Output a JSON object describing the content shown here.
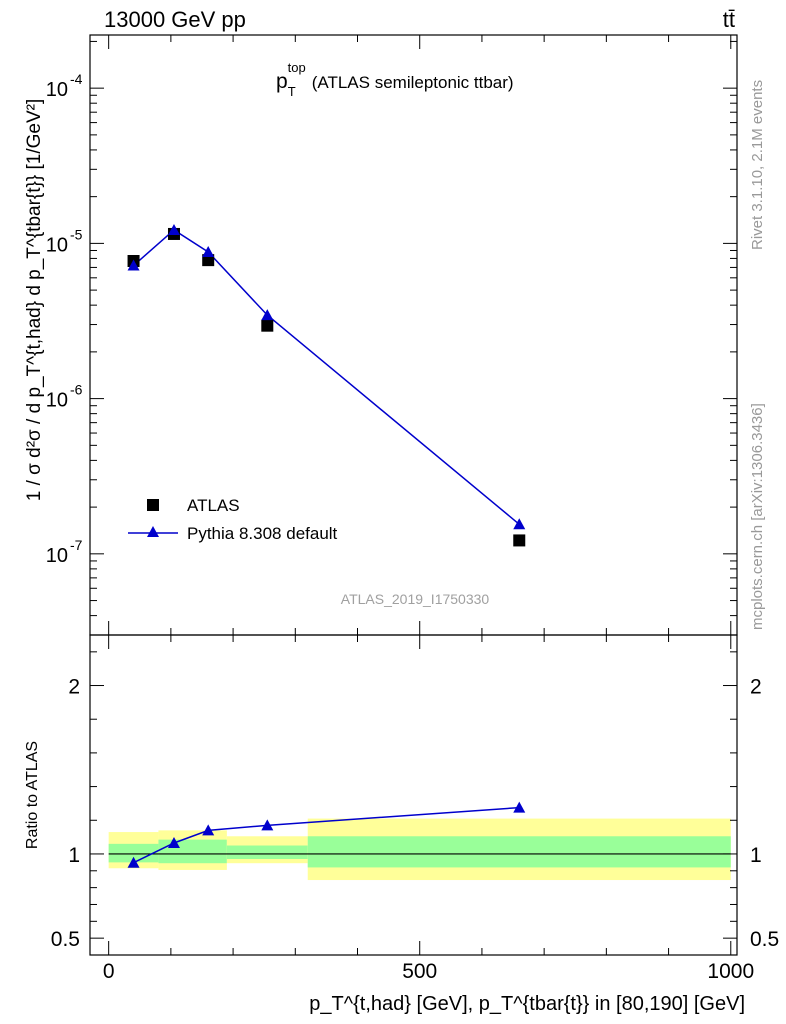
{
  "header": {
    "left_label": "13000 GeV pp",
    "right_label": "tt̄"
  },
  "side_labels": {
    "rivet": "Rivet 3.1.10,  2.1M events",
    "mcplots": "mcplots.cern.ch [arXiv:1306.3436]"
  },
  "watermark": "ATLAS_2019_I1750330",
  "colors": {
    "mc": "#0000cc",
    "band_inner": "#99ff99",
    "band_outer": "#ffff99",
    "data": "#000000"
  },
  "chart_data": [
    {
      "type": "scatter",
      "title_main": "p",
      "title_sup": "top",
      "title_sub": "T",
      "title_rest": "(ATLAS semileptonic ttbar)",
      "ylabel": "1 / σ d²σ / d p_T^{t,had} d p_T^{tbar{t}} [1/GeV²]",
      "yscale": "log",
      "ylim": [
        3e-08,
        0.00022
      ],
      "xlim": [
        -30,
        1010
      ],
      "ytick_labels": [
        "10",
        "10",
        "10",
        "10"
      ],
      "ytick_exps": [
        "-7",
        "-6",
        "-5",
        "-4"
      ],
      "ytick_values": [
        1e-07,
        1e-06,
        1e-05,
        0.0001
      ],
      "legend_position": "bottom-left",
      "series": [
        {
          "name": "ATLAS",
          "marker": "square",
          "x": [
            40,
            105,
            160,
            255,
            660
          ],
          "y": [
            7.7e-06,
            1.15e-05,
            7.8e-06,
            2.95e-06,
            1.22e-07
          ]
        },
        {
          "name": "Pythia 8.308 default",
          "marker": "triangle",
          "x": [
            40,
            105,
            160,
            255,
            660
          ],
          "y": [
            7.2e-06,
            1.22e-05,
            8.8e-06,
            3.45e-06,
            1.55e-07
          ]
        }
      ]
    },
    {
      "type": "line",
      "ylabel": "Ratio to ATLAS",
      "xlabel": "p_T^{t,had} [GeV], p_T^{tbar{t}} in [80,190] [GeV]",
      "xlim": [
        -30,
        1010
      ],
      "ylim": [
        0.4,
        2.3
      ],
      "ytick_labels": [
        "0.5",
        "1",
        "2"
      ],
      "ytick_values": [
        0.5,
        1,
        2
      ],
      "xtick_labels": [
        "0",
        "500",
        "1000"
      ],
      "xtick_values": [
        0,
        500,
        1000
      ],
      "bands": [
        {
          "x0": 0,
          "x1": 80,
          "inner": [
            0.95,
            1.06
          ],
          "outer": [
            0.915,
            1.13
          ]
        },
        {
          "x0": 80,
          "x1": 190,
          "inner": [
            0.945,
            1.085
          ],
          "outer": [
            0.905,
            1.14
          ]
        },
        {
          "x0": 190,
          "x1": 320,
          "inner": [
            0.97,
            1.05
          ],
          "outer": [
            0.945,
            1.105
          ]
        },
        {
          "x0": 320,
          "x1": 1000,
          "inner": [
            0.92,
            1.105
          ],
          "outer": [
            0.845,
            1.21
          ]
        }
      ],
      "series": [
        {
          "name": "Pythia 8.308 default",
          "x": [
            40,
            105,
            160,
            255,
            660
          ],
          "y": [
            0.948,
            1.065,
            1.14,
            1.17,
            1.275
          ]
        }
      ]
    }
  ]
}
